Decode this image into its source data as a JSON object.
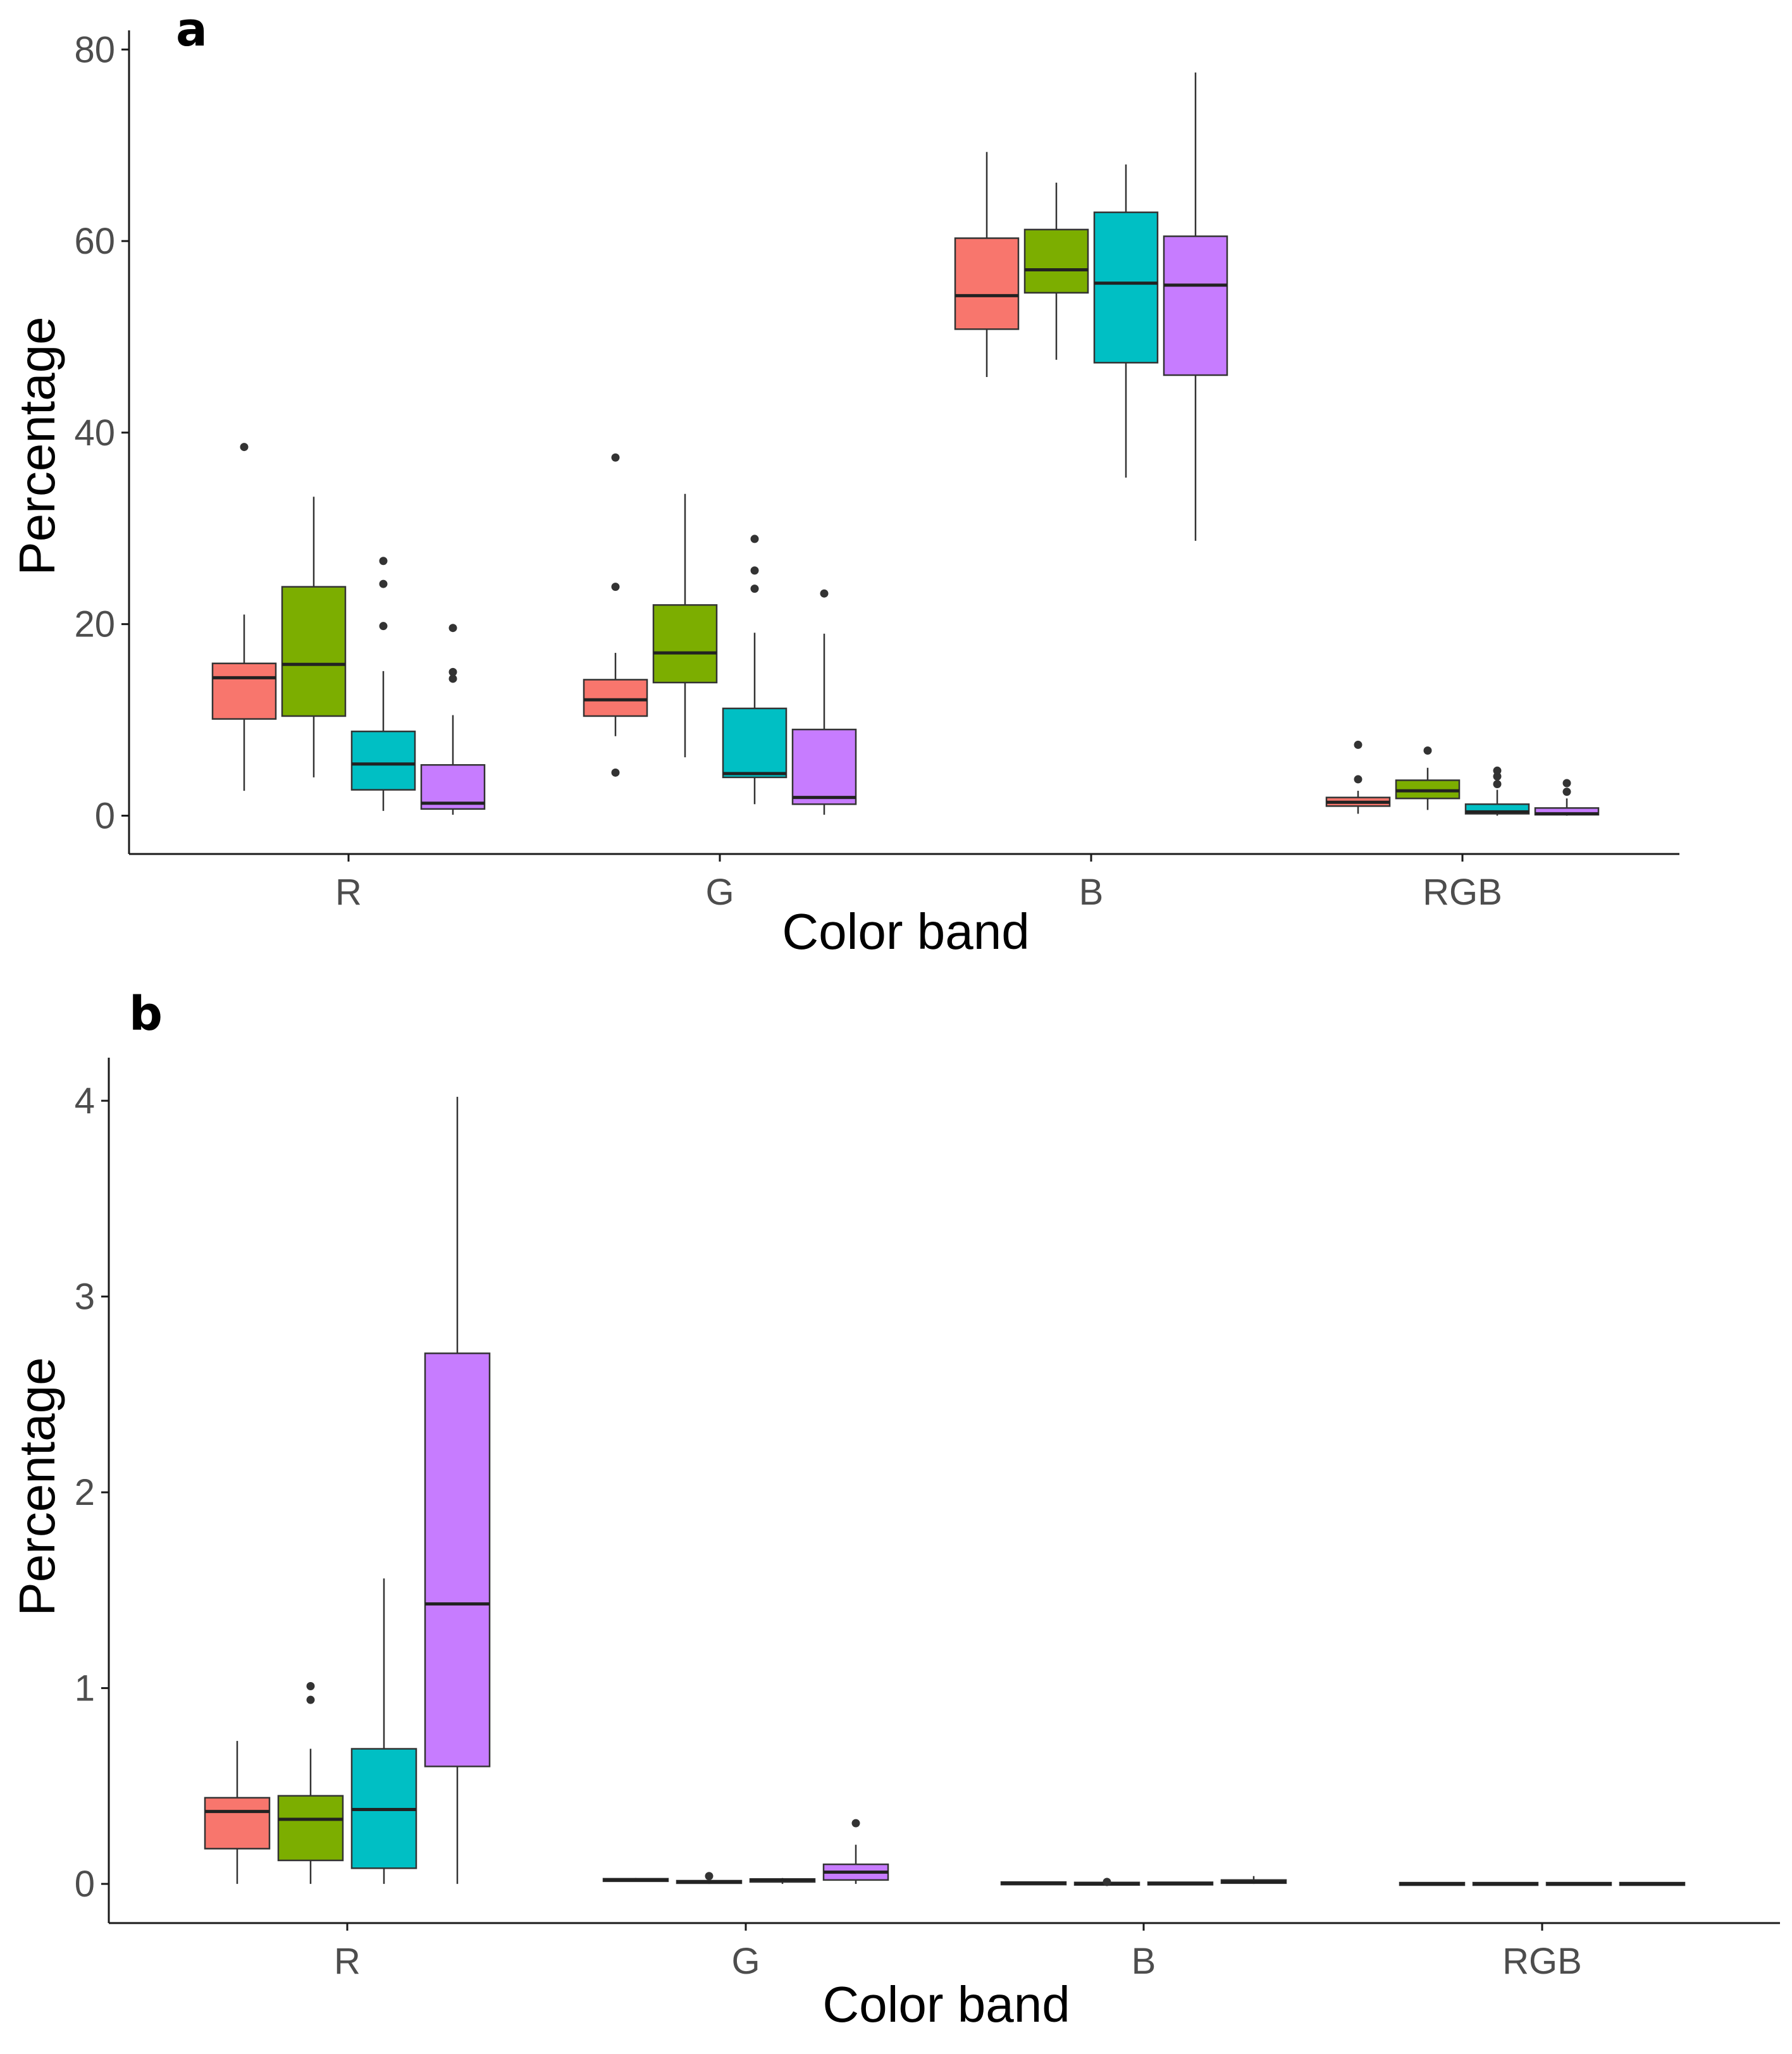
{
  "figure": {
    "palette": [
      "#F8766D",
      "#7CAE00",
      "#00BFC4",
      "#C77CFF"
    ]
  },
  "chart_data": [
    {
      "panel": "a",
      "type": "boxplot",
      "xlabel": "Color band",
      "ylabel": "Percentage",
      "categories": [
        "R",
        "G",
        "B",
        "RGB"
      ],
      "ylim": [
        -4,
        82
      ],
      "yticks": [
        0,
        20,
        40,
        60,
        80
      ],
      "grid": false,
      "groups": [
        {
          "category": "R",
          "boxes": [
            {
              "min": 2.6,
              "q1": 10.1,
              "median": 14.4,
              "q3": 15.9,
              "max": 21.0,
              "outliers": [
                38.5
              ]
            },
            {
              "min": 4.0,
              "q1": 10.4,
              "median": 15.8,
              "q3": 23.9,
              "max": 33.3,
              "outliers": []
            },
            {
              "min": 0.5,
              "q1": 2.7,
              "median": 5.4,
              "q3": 8.8,
              "max": 15.1,
              "outliers": [
                19.8,
                24.2,
                26.6
              ]
            },
            {
              "min": 0.1,
              "q1": 0.7,
              "median": 1.3,
              "q3": 5.3,
              "max": 10.5,
              "outliers": [
                14.3,
                15.0,
                19.6
              ]
            }
          ]
        },
        {
          "category": "G",
          "boxes": [
            {
              "min": 8.3,
              "q1": 10.4,
              "median": 12.1,
              "q3": 14.2,
              "max": 17.0,
              "outliers": [
                4.5,
                23.9,
                37.4
              ]
            },
            {
              "min": 6.1,
              "q1": 13.9,
              "median": 17.0,
              "q3": 22.0,
              "max": 33.6,
              "outliers": []
            },
            {
              "min": 1.2,
              "q1": 4.0,
              "median": 4.4,
              "q3": 11.2,
              "max": 19.1,
              "outliers": [
                23.7,
                25.6,
                28.9
              ]
            },
            {
              "min": 0.1,
              "q1": 1.2,
              "median": 1.9,
              "q3": 9.0,
              "max": 19.0,
              "outliers": [
                23.2
              ]
            }
          ]
        },
        {
          "category": "B",
          "boxes": [
            {
              "min": 45.8,
              "q1": 50.8,
              "median": 54.3,
              "q3": 60.3,
              "max": 69.3,
              "outliers": []
            },
            {
              "min": 47.6,
              "q1": 54.6,
              "median": 57.0,
              "q3": 61.2,
              "max": 66.1,
              "outliers": []
            },
            {
              "min": 35.3,
              "q1": 47.3,
              "median": 55.6,
              "q3": 63.0,
              "max": 68.0,
              "outliers": []
            },
            {
              "min": 28.7,
              "q1": 46.0,
              "median": 55.4,
              "q3": 60.5,
              "max": 77.6,
              "outliers": []
            }
          ]
        },
        {
          "category": "RGB",
          "boxes": [
            {
              "min": 0.2,
              "q1": 1.0,
              "median": 1.4,
              "q3": 1.9,
              "max": 2.6,
              "outliers": [
                3.8,
                7.4
              ]
            },
            {
              "min": 0.6,
              "q1": 1.8,
              "median": 2.6,
              "q3": 3.7,
              "max": 5.0,
              "outliers": [
                6.8
              ]
            },
            {
              "min": 0.0,
              "q1": 0.2,
              "median": 0.4,
              "q3": 1.2,
              "max": 2.7,
              "outliers": [
                3.3,
                4.1,
                4.7
              ]
            },
            {
              "min": 0.0,
              "q1": 0.1,
              "median": 0.2,
              "q3": 0.8,
              "max": 1.8,
              "outliers": [
                2.5,
                3.4
              ]
            }
          ]
        }
      ],
      "label": "a"
    },
    {
      "panel": "b",
      "type": "boxplot",
      "xlabel": "Color band",
      "ylabel": "Percentage",
      "categories": [
        "R",
        "G",
        "B",
        "RGB"
      ],
      "ylim": [
        -0.2,
        4.22
      ],
      "yticks": [
        0,
        1,
        2,
        3,
        4
      ],
      "grid": false,
      "groups": [
        {
          "category": "R",
          "boxes": [
            {
              "min": 0.0,
              "q1": 0.18,
              "median": 0.37,
              "q3": 0.44,
              "max": 0.73,
              "outliers": []
            },
            {
              "min": 0.0,
              "q1": 0.12,
              "median": 0.33,
              "q3": 0.45,
              "max": 0.69,
              "outliers": [
                0.94,
                1.01
              ]
            },
            {
              "min": 0.0,
              "q1": 0.08,
              "median": 0.38,
              "q3": 0.69,
              "max": 1.56,
              "outliers": []
            },
            {
              "min": 0.0,
              "q1": 0.6,
              "median": 1.43,
              "q3": 2.71,
              "max": 4.02,
              "outliers": []
            }
          ]
        },
        {
          "category": "G",
          "boxes": [
            {
              "min": 0.01,
              "q1": 0.015,
              "median": 0.02,
              "q3": 0.025,
              "max": 0.03,
              "outliers": []
            },
            {
              "min": 0.0,
              "q1": 0.005,
              "median": 0.01,
              "q3": 0.015,
              "max": 0.02,
              "outliers": [
                0.04
              ]
            },
            {
              "min": 0.0,
              "q1": 0.01,
              "median": 0.02,
              "q3": 0.025,
              "max": 0.03,
              "outliers": []
            },
            {
              "min": 0.0,
              "q1": 0.02,
              "median": 0.06,
              "q3": 0.1,
              "max": 0.2,
              "outliers": [
                0.31
              ]
            }
          ]
        },
        {
          "category": "B",
          "boxes": [
            {
              "min": 0.0,
              "q1": 0.0,
              "median": 0.003,
              "q3": 0.006,
              "max": 0.008,
              "outliers": []
            },
            {
              "min": 0.0,
              "q1": 0.0,
              "median": 0.001,
              "q3": 0.002,
              "max": 0.003,
              "outliers": [
                0.01
              ]
            },
            {
              "min": 0.0,
              "q1": 0.0,
              "median": 0.002,
              "q3": 0.004,
              "max": 0.006,
              "outliers": []
            },
            {
              "min": 0.0,
              "q1": 0.004,
              "median": 0.01,
              "q3": 0.02,
              "max": 0.04,
              "outliers": []
            }
          ]
        },
        {
          "category": "RGB",
          "boxes": [
            {
              "min": 0.0,
              "q1": 0.0,
              "median": 0.0,
              "q3": 0.001,
              "max": 0.002,
              "outliers": []
            },
            {
              "min": 0.0,
              "q1": 0.0,
              "median": 0.0,
              "q3": 0.001,
              "max": 0.002,
              "outliers": []
            },
            {
              "min": 0.0,
              "q1": 0.0,
              "median": 0.0,
              "q3": 0.001,
              "max": 0.002,
              "outliers": []
            },
            {
              "min": 0.0,
              "q1": 0.0,
              "median": 0.0,
              "q3": 0.001,
              "max": 0.002,
              "outliers": []
            }
          ]
        }
      ],
      "label": "b"
    }
  ]
}
